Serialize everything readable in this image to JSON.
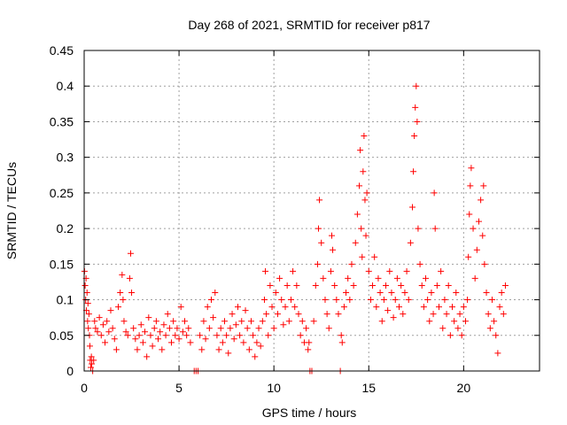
{
  "chart_data": {
    "type": "scatter",
    "title": "Day 268 of 2021, SRMTID for receiver p817",
    "xlabel": "GPS time / hours",
    "ylabel": "SRMTID / TECUs",
    "xlim": [
      0,
      24
    ],
    "ylim": [
      0,
      0.45
    ],
    "xticks": [
      0,
      5,
      10,
      15,
      20
    ],
    "xtick_labels": [
      "0",
      "5",
      "10",
      "15",
      "20"
    ],
    "yticks": [
      0,
      0.05,
      0.1,
      0.15,
      0.2,
      0.25,
      0.3,
      0.35,
      0.4,
      0.45
    ],
    "ytick_labels": [
      "0",
      "0.05",
      "0.1",
      "0.15",
      "0.2",
      "0.25",
      "0.3",
      "0.35",
      "0.4",
      "0.45"
    ],
    "grid": true,
    "marker_color": "#ff0000",
    "series": [
      {
        "name": "SRMTID",
        "marker": "plus",
        "points": [
          [
            0.02,
            0.14
          ],
          [
            0.05,
            0.12
          ],
          [
            0.08,
            0.1
          ],
          [
            0.1,
            0.13
          ],
          [
            0.12,
            0.085
          ],
          [
            0.15,
            0.11
          ],
          [
            0.18,
            0.07
          ],
          [
            0.2,
            0.095
          ],
          [
            0.22,
            0.06
          ],
          [
            0.25,
            0.08
          ],
          [
            0.28,
            0.05
          ],
          [
            0.3,
            0.035
          ],
          [
            0.32,
            0.015
          ],
          [
            0.35,
            0.005
          ],
          [
            0.38,
            0.02
          ],
          [
            0.4,
            0.01
          ],
          [
            0.45,
            0.0
          ],
          [
            0.5,
            0.015
          ],
          [
            0.55,
            0.07
          ],
          [
            0.6,
            0.06
          ],
          [
            0.7,
            0.055
          ],
          [
            0.8,
            0.075
          ],
          [
            0.9,
            0.05
          ],
          [
            1.0,
            0.065
          ],
          [
            1.1,
            0.04
          ],
          [
            1.2,
            0.07
          ],
          [
            1.3,
            0.055
          ],
          [
            1.4,
            0.085
          ],
          [
            1.5,
            0.06
          ],
          [
            1.6,
            0.045
          ],
          [
            1.7,
            0.03
          ],
          [
            1.8,
            0.09
          ],
          [
            1.9,
            0.11
          ],
          [
            2.0,
            0.135
          ],
          [
            2.05,
            0.1
          ],
          [
            2.1,
            0.07
          ],
          [
            2.2,
            0.055
          ],
          [
            2.3,
            0.05
          ],
          [
            2.4,
            0.13
          ],
          [
            2.45,
            0.165
          ],
          [
            2.5,
            0.11
          ],
          [
            2.6,
            0.06
          ],
          [
            2.7,
            0.045
          ],
          [
            2.8,
            0.03
          ],
          [
            2.9,
            0.05
          ],
          [
            3.0,
            0.065
          ],
          [
            3.1,
            0.04
          ],
          [
            3.2,
            0.055
          ],
          [
            3.3,
            0.02
          ],
          [
            3.4,
            0.075
          ],
          [
            3.5,
            0.05
          ],
          [
            3.6,
            0.035
          ],
          [
            3.7,
            0.06
          ],
          [
            3.8,
            0.07
          ],
          [
            3.9,
            0.045
          ],
          [
            4.0,
            0.055
          ],
          [
            4.1,
            0.03
          ],
          [
            4.2,
            0.065
          ],
          [
            4.3,
            0.05
          ],
          [
            4.4,
            0.08
          ],
          [
            4.5,
            0.06
          ],
          [
            4.6,
            0.04
          ],
          [
            4.7,
            0.07
          ],
          [
            4.8,
            0.05
          ],
          [
            4.9,
            0.06
          ],
          [
            5.0,
            0.045
          ],
          [
            5.1,
            0.09
          ],
          [
            5.2,
            0.055
          ],
          [
            5.3,
            0.07
          ],
          [
            5.4,
            0.05
          ],
          [
            5.5,
            0.06
          ],
          [
            5.6,
            0.04
          ],
          [
            5.8,
            0.0
          ],
          [
            5.9,
            0.0
          ],
          [
            6.0,
            0.0
          ],
          [
            6.1,
            0.05
          ],
          [
            6.2,
            0.03
          ],
          [
            6.3,
            0.07
          ],
          [
            6.4,
            0.045
          ],
          [
            6.5,
            0.09
          ],
          [
            6.6,
            0.06
          ],
          [
            6.7,
            0.1
          ],
          [
            6.8,
            0.075
          ],
          [
            6.9,
            0.11
          ],
          [
            7.0,
            0.05
          ],
          [
            7.1,
            0.03
          ],
          [
            7.2,
            0.06
          ],
          [
            7.3,
            0.04
          ],
          [
            7.4,
            0.07
          ],
          [
            7.5,
            0.05
          ],
          [
            7.6,
            0.025
          ],
          [
            7.7,
            0.06
          ],
          [
            7.8,
            0.08
          ],
          [
            7.9,
            0.045
          ],
          [
            8.0,
            0.065
          ],
          [
            8.1,
            0.09
          ],
          [
            8.2,
            0.05
          ],
          [
            8.3,
            0.07
          ],
          [
            8.4,
            0.04
          ],
          [
            8.5,
            0.085
          ],
          [
            8.6,
            0.06
          ],
          [
            8.7,
            0.03
          ],
          [
            8.8,
            0.07
          ],
          [
            8.9,
            0.05
          ],
          [
            9.0,
            0.02
          ],
          [
            9.1,
            0.04
          ],
          [
            9.2,
            0.06
          ],
          [
            9.3,
            0.035
          ],
          [
            9.4,
            0.07
          ],
          [
            9.5,
            0.1
          ],
          [
            9.55,
            0.14
          ],
          [
            9.6,
            0.08
          ],
          [
            9.7,
            0.05
          ],
          [
            9.8,
            0.12
          ],
          [
            9.9,
            0.09
          ],
          [
            10.0,
            0.06
          ],
          [
            10.1,
            0.11
          ],
          [
            10.2,
            0.08
          ],
          [
            10.3,
            0.13
          ],
          [
            10.4,
            0.1
          ],
          [
            10.5,
            0.065
          ],
          [
            10.6,
            0.09
          ],
          [
            10.7,
            0.12
          ],
          [
            10.8,
            0.07
          ],
          [
            10.9,
            0.1
          ],
          [
            11.0,
            0.14
          ],
          [
            11.1,
            0.09
          ],
          [
            11.2,
            0.12
          ],
          [
            11.3,
            0.08
          ],
          [
            11.4,
            0.05
          ],
          [
            11.5,
            0.07
          ],
          [
            11.6,
            0.04
          ],
          [
            11.7,
            0.06
          ],
          [
            11.8,
            0.03
          ],
          [
            11.85,
            0.04
          ],
          [
            11.9,
            0.0
          ],
          [
            12.0,
            0.0
          ],
          [
            13.5,
            0.0
          ],
          [
            12.1,
            0.07
          ],
          [
            12.2,
            0.12
          ],
          [
            12.3,
            0.15
          ],
          [
            12.35,
            0.2
          ],
          [
            12.4,
            0.24
          ],
          [
            12.5,
            0.18
          ],
          [
            12.6,
            0.13
          ],
          [
            12.7,
            0.1
          ],
          [
            12.8,
            0.08
          ],
          [
            12.9,
            0.06
          ],
          [
            13.0,
            0.14
          ],
          [
            13.05,
            0.19
          ],
          [
            13.1,
            0.17
          ],
          [
            13.2,
            0.12
          ],
          [
            13.3,
            0.1
          ],
          [
            13.4,
            0.08
          ],
          [
            13.55,
            0.05
          ],
          [
            13.6,
            0.04
          ],
          [
            13.7,
            0.09
          ],
          [
            13.8,
            0.11
          ],
          [
            13.9,
            0.13
          ],
          [
            14.0,
            0.1
          ],
          [
            14.1,
            0.15
          ],
          [
            14.2,
            0.12
          ],
          [
            14.3,
            0.18
          ],
          [
            14.4,
            0.22
          ],
          [
            14.5,
            0.26
          ],
          [
            14.55,
            0.31
          ],
          [
            14.6,
            0.2
          ],
          [
            14.65,
            0.16
          ],
          [
            14.7,
            0.28
          ],
          [
            14.75,
            0.33
          ],
          [
            14.8,
            0.24
          ],
          [
            14.85,
            0.19
          ],
          [
            14.9,
            0.25
          ],
          [
            15.0,
            0.14
          ],
          [
            15.1,
            0.1
          ],
          [
            15.2,
            0.12
          ],
          [
            15.3,
            0.16
          ],
          [
            15.4,
            0.09
          ],
          [
            15.5,
            0.13
          ],
          [
            15.6,
            0.11
          ],
          [
            15.7,
            0.07
          ],
          [
            15.8,
            0.1
          ],
          [
            15.9,
            0.12
          ],
          [
            16.0,
            0.085
          ],
          [
            16.1,
            0.14
          ],
          [
            16.2,
            0.11
          ],
          [
            16.3,
            0.075
          ],
          [
            16.4,
            0.1
          ],
          [
            16.5,
            0.13
          ],
          [
            16.6,
            0.09
          ],
          [
            16.7,
            0.12
          ],
          [
            16.8,
            0.08
          ],
          [
            16.9,
            0.11
          ],
          [
            17.0,
            0.14
          ],
          [
            17.1,
            0.1
          ],
          [
            17.2,
            0.18
          ],
          [
            17.3,
            0.23
          ],
          [
            17.35,
            0.28
          ],
          [
            17.4,
            0.33
          ],
          [
            17.45,
            0.37
          ],
          [
            17.5,
            0.4
          ],
          [
            17.55,
            0.35
          ],
          [
            17.6,
            0.2
          ],
          [
            17.7,
            0.15
          ],
          [
            17.8,
            0.12
          ],
          [
            17.9,
            0.09
          ],
          [
            18.0,
            0.13
          ],
          [
            18.1,
            0.1
          ],
          [
            18.2,
            0.07
          ],
          [
            18.3,
            0.11
          ],
          [
            18.4,
            0.08
          ],
          [
            18.45,
            0.25
          ],
          [
            18.5,
            0.2
          ],
          [
            18.6,
            0.12
          ],
          [
            18.7,
            0.09
          ],
          [
            18.8,
            0.14
          ],
          [
            18.9,
            0.06
          ],
          [
            19.0,
            0.1
          ],
          [
            19.1,
            0.08
          ],
          [
            19.2,
            0.12
          ],
          [
            19.3,
            0.05
          ],
          [
            19.4,
            0.09
          ],
          [
            19.5,
            0.07
          ],
          [
            19.6,
            0.11
          ],
          [
            19.7,
            0.06
          ],
          [
            19.8,
            0.08
          ],
          [
            19.9,
            0.05
          ],
          [
            20.0,
            0.09
          ],
          [
            20.1,
            0.07
          ],
          [
            20.2,
            0.1
          ],
          [
            20.25,
            0.16
          ],
          [
            20.3,
            0.22
          ],
          [
            20.35,
            0.26
          ],
          [
            20.4,
            0.285
          ],
          [
            20.5,
            0.2
          ],
          [
            20.6,
            0.13
          ],
          [
            20.7,
            0.17
          ],
          [
            20.8,
            0.21
          ],
          [
            20.9,
            0.24
          ],
          [
            21.0,
            0.19
          ],
          [
            21.05,
            0.26
          ],
          [
            21.1,
            0.15
          ],
          [
            21.2,
            0.11
          ],
          [
            21.3,
            0.08
          ],
          [
            21.4,
            0.06
          ],
          [
            21.5,
            0.1
          ],
          [
            21.6,
            0.07
          ],
          [
            21.7,
            0.05
          ],
          [
            21.8,
            0.025
          ],
          [
            21.9,
            0.09
          ],
          [
            22.0,
            0.11
          ],
          [
            22.1,
            0.08
          ],
          [
            22.2,
            0.12
          ]
        ]
      }
    ]
  }
}
